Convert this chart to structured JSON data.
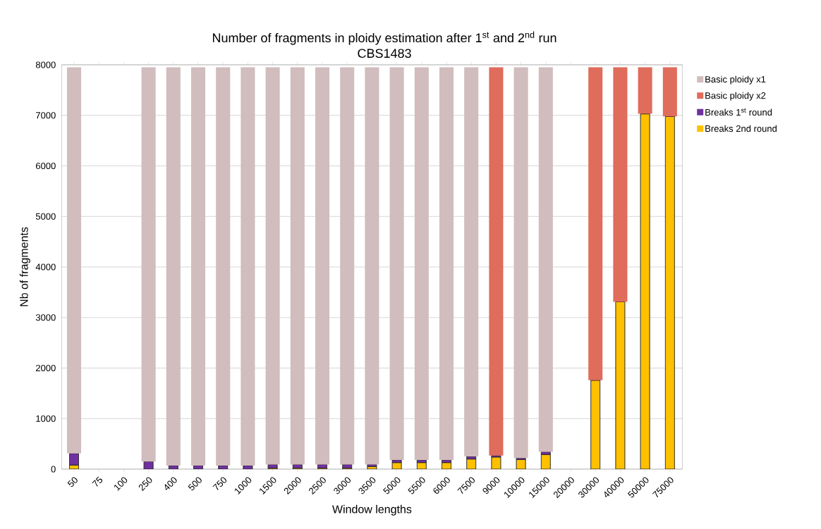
{
  "chart_data": {
    "type": "bar",
    "title": "Number of fragments in ploidy estimation after 1$^{st}$ and 2$^{nd}$ run",
    "subtitle": "CBS1483",
    "xlabel": "Window lengths",
    "ylabel": "Nb of fragments",
    "categories": [
      "50",
      "75",
      "100",
      "250",
      "400",
      "500",
      "750",
      "1000",
      "1500",
      "2000",
      "2500",
      "3000",
      "3500",
      "5000",
      "5500",
      "6000",
      "7500",
      "9000",
      "10000",
      "15000",
      "20000",
      "30000",
      "40000",
      "50000",
      "75000"
    ],
    "stacked": true,
    "grid": "y",
    "legend": "right",
    "ylim": [
      0,
      8000
    ],
    "yticks": [
      0,
      1000,
      2000,
      3000,
      4000,
      5000,
      6000,
      7000,
      8000
    ],
    "series": [
      {
        "name": "Breaks 2nd round",
        "color": "#ffc000",
        "values": [
          80,
          null,
          null,
          0,
          0,
          0,
          0,
          0,
          20,
          20,
          20,
          20,
          50,
          130,
          130,
          130,
          200,
          240,
          190,
          290,
          null,
          1760,
          3310,
          7030,
          6980
        ]
      },
      {
        "name": "Breaks 1$^{st}$ round",
        "color": "#7030a0",
        "values": [
          230,
          null,
          null,
          150,
          70,
          70,
          70,
          70,
          70,
          70,
          70,
          70,
          40,
          50,
          50,
          50,
          50,
          30,
          30,
          50,
          null,
          0,
          0,
          0,
          0
        ]
      },
      {
        "name": "Basic ploidy x2",
        "color": "#e06c5c",
        "values": [
          null,
          null,
          null,
          null,
          null,
          null,
          null,
          null,
          null,
          null,
          null,
          null,
          null,
          null,
          null,
          null,
          null,
          7680,
          null,
          null,
          null,
          6190,
          4640,
          920,
          970
        ]
      },
      {
        "name": "Basic ploidy x1",
        "color": "#d1bcbe",
        "values": [
          7640,
          null,
          null,
          7800,
          7880,
          7880,
          7880,
          7880,
          7860,
          7860,
          7860,
          7860,
          7860,
          7770,
          7770,
          7770,
          7700,
          null,
          7730,
          7610,
          null,
          null,
          null,
          null,
          null
        ]
      }
    ]
  }
}
